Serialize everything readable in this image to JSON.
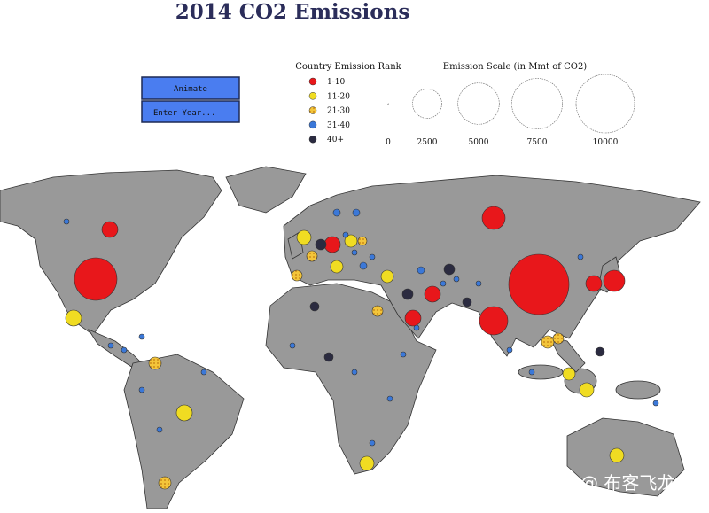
{
  "header": {
    "title": "2014 CO2 Emissions"
  },
  "controls": {
    "animate": "Animate",
    "year_input": "Enter Year..."
  },
  "rank_legend": {
    "title": "Country Emission Rank",
    "entries": [
      {
        "label": "1-10",
        "color": "#e8171b"
      },
      {
        "label": "11-20",
        "color": "#f0dc22"
      },
      {
        "label": "21-30",
        "color": "#f3c53a"
      },
      {
        "label": "31-40",
        "color": "#3b78d8"
      },
      {
        "label": "40+",
        "color": "#2b2b40"
      }
    ]
  },
  "scale_legend": {
    "title": "Emission Scale (in Mmt of CO2)",
    "values": [
      0,
      2500,
      5000,
      7500,
      10000
    ]
  },
  "watermark": "掘金技术社区 @ 布客飞龙"
}
